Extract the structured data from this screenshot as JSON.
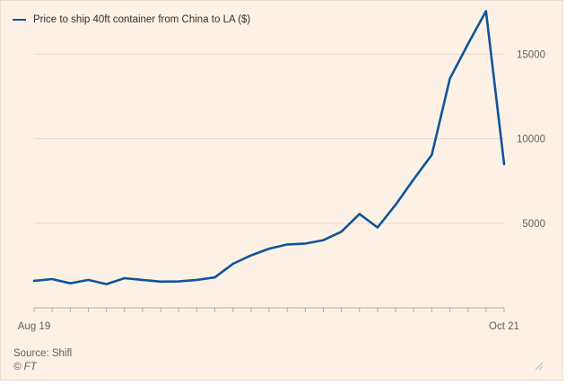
{
  "legend": {
    "label": "Price to ship 40ft container from China to LA ($)",
    "color": "#0f5499"
  },
  "footer": {
    "source": "Source: Shifl",
    "copyright": "© FT"
  },
  "icons": {
    "corner": "resize-grip-icon"
  },
  "chart_data": {
    "type": "line",
    "title": "",
    "xlabel": "",
    "ylabel": "",
    "x_tick_labels": [
      "Aug 19",
      "Oct 21"
    ],
    "y_ticks": [
      5000,
      10000,
      15000
    ],
    "ylim": [
      0,
      17500
    ],
    "grid": true,
    "legend_position": "top-left",
    "series": [
      {
        "name": "Price to ship 40ft container from China to LA ($)",
        "color": "#0f5499",
        "values": [
          1600,
          1700,
          1450,
          1650,
          1400,
          1750,
          1650,
          1550,
          1560,
          1650,
          1800,
          2600,
          3100,
          3500,
          3750,
          3800,
          4000,
          4500,
          5550,
          4750,
          6100,
          7600,
          9050,
          13550,
          15600,
          17550,
          8500
        ]
      }
    ]
  }
}
